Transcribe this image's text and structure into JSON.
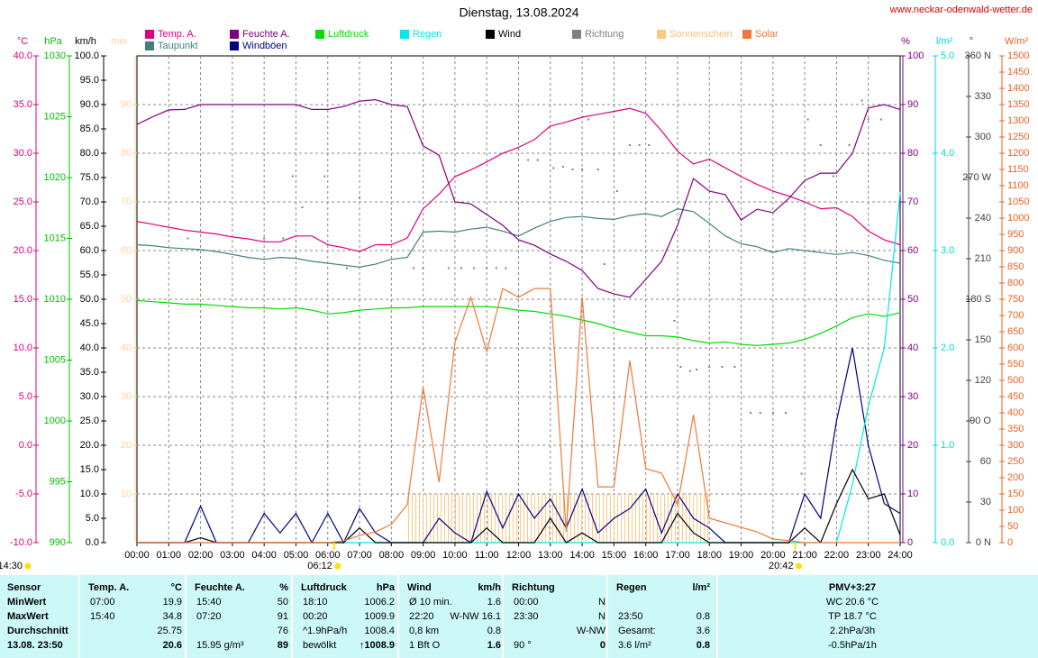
{
  "chart_data": {
    "type": "line",
    "title": "Dienstag, 13.08.2024",
    "source": "www.neckar-odenwald-wetter.de",
    "xlim": [
      0,
      24
    ],
    "xticks": [
      {
        "value": 0,
        "label": "00:00"
      },
      {
        "value": 1,
        "label": "01:00"
      },
      {
        "value": 2,
        "label": "02:00"
      },
      {
        "value": 3,
        "label": "03:00"
      },
      {
        "value": 4,
        "label": "04:00"
      },
      {
        "value": 5,
        "label": "05:00"
      },
      {
        "value": 6,
        "label": "06:00"
      },
      {
        "value": 7,
        "label": "07:00"
      },
      {
        "value": 8,
        "label": "08:00"
      },
      {
        "value": 9,
        "label": "09:00"
      },
      {
        "value": 10,
        "label": "10:00"
      },
      {
        "value": 11,
        "label": "11:00"
      },
      {
        "value": 12,
        "label": "12:00"
      },
      {
        "value": 13,
        "label": "13:00"
      },
      {
        "value": 14,
        "label": "14:00"
      },
      {
        "value": 15,
        "label": "15:00"
      },
      {
        "value": 16,
        "label": "16:00"
      },
      {
        "value": 17,
        "label": "17:00"
      },
      {
        "value": 18,
        "label": "18:00"
      },
      {
        "value": 19,
        "label": "19:00"
      },
      {
        "value": 20,
        "label": "20:00"
      },
      {
        "value": 21,
        "label": "21:00"
      },
      {
        "value": 22,
        "label": "22:00"
      },
      {
        "value": 23,
        "label": "23:00"
      },
      {
        "value": 24,
        "label": "24:00"
      }
    ],
    "axes": [
      {
        "label": "°C",
        "color": "#e0007f",
        "lim": [
          -10,
          40
        ],
        "ticks": [
          {
            "value": -10,
            "label": "-10.0"
          },
          {
            "value": -5,
            "label": "-5.0"
          },
          {
            "value": 0,
            "label": "0.0"
          },
          {
            "value": 5,
            "label": "5.0"
          },
          {
            "value": 10,
            "label": "10.0"
          },
          {
            "value": 15,
            "label": "15.0"
          },
          {
            "value": 20,
            "label": "20.0"
          },
          {
            "value": 25,
            "label": "25.0"
          },
          {
            "value": 30,
            "label": "30.0"
          },
          {
            "value": 35,
            "label": "35.0"
          },
          {
            "value": 40,
            "label": "40.0"
          }
        ]
      },
      {
        "label": "hPa",
        "color": "#00c000",
        "lim": [
          990,
          1030
        ],
        "ticks": [
          990,
          995,
          1000,
          1005,
          1010,
          1015,
          1020,
          1025,
          1030
        ]
      },
      {
        "label": "km/h",
        "color": "#000000",
        "lim": [
          0,
          100
        ],
        "ticks": [
          {
            "value": 0,
            "label": "0.0"
          },
          {
            "value": 5,
            "label": "5.0"
          },
          {
            "value": 10,
            "label": "10.0"
          },
          {
            "value": 15,
            "label": "15.0"
          },
          {
            "value": 20,
            "label": "20.0"
          },
          {
            "value": 25,
            "label": "25.0"
          },
          {
            "value": 30,
            "label": "30.0"
          },
          {
            "value": 35,
            "label": "35.0"
          },
          {
            "value": 40,
            "label": "40.0"
          },
          {
            "value": 45,
            "label": "45.0"
          },
          {
            "value": 50,
            "label": "50.0"
          },
          {
            "value": 55,
            "label": "55.0"
          },
          {
            "value": 60,
            "label": "60.0"
          },
          {
            "value": 65,
            "label": "65.0"
          },
          {
            "value": 70,
            "label": "70.0"
          },
          {
            "value": 75,
            "label": "75.0"
          },
          {
            "value": 80,
            "label": "80.0"
          },
          {
            "value": 85,
            "label": "85.0"
          },
          {
            "value": 90,
            "label": "90.0"
          },
          {
            "value": 95,
            "label": "95.0"
          },
          {
            "value": 100,
            "label": "100.0"
          }
        ]
      },
      {
        "label": "min",
        "color": "#ffd2a0",
        "lim": [
          0,
          100
        ],
        "ticks": [
          10,
          20,
          30,
          40,
          50,
          60,
          70,
          80,
          90
        ]
      },
      {
        "label": "%",
        "color": "#800080",
        "lim": [
          0,
          100
        ],
        "ticks": [
          0,
          10,
          20,
          30,
          40,
          50,
          60,
          70,
          80,
          90,
          100
        ],
        "grid": true
      },
      {
        "label": "l/m²",
        "color": "#00d8d8",
        "lim": [
          0,
          5
        ],
        "ticks": [
          {
            "value": 0,
            "label": "0.0"
          },
          {
            "value": 1,
            "label": "1.0"
          },
          {
            "value": 2,
            "label": "2.0"
          },
          {
            "value": 3,
            "label": "3.0"
          },
          {
            "value": 4,
            "label": "4.0"
          },
          {
            "value": 5,
            "label": "5.0"
          }
        ]
      },
      {
        "label": "°",
        "color": "#404040",
        "lim": [
          0,
          360
        ],
        "ticks": [
          {
            "value": 0,
            "label": "0 N"
          },
          30,
          60,
          {
            "value": 90,
            "label": "90 O"
          },
          120,
          150,
          {
            "value": 180,
            "label": "180 S"
          },
          210,
          240,
          {
            "value": 270,
            "label": "270 W"
          },
          300,
          330,
          {
            "value": 360,
            "label": "360 N"
          }
        ]
      },
      {
        "label": "W/m²",
        "color": "#f06020",
        "lim": [
          0,
          1500
        ],
        "ticks": [
          0,
          50,
          100,
          150,
          200,
          250,
          300,
          350,
          400,
          450,
          500,
          550,
          600,
          650,
          700,
          750,
          800,
          850,
          900,
          950,
          1000,
          1050,
          1100,
          1150,
          1200,
          1250,
          1300,
          1350,
          1400,
          1450,
          1500
        ]
      }
    ],
    "x": [
      0,
      0.5,
      1,
      1.5,
      2,
      2.5,
      3,
      3.5,
      4,
      4.5,
      5,
      5.5,
      6,
      6.5,
      7,
      7.5,
      8,
      8.5,
      9,
      9.5,
      10,
      10.5,
      11,
      11.5,
      12,
      12.5,
      13,
      13.5,
      14,
      14.5,
      15,
      15.5,
      16,
      16.5,
      17,
      17.5,
      18,
      18.5,
      19,
      19.5,
      20,
      20.5,
      21,
      21.5,
      22,
      22.5,
      23,
      23.5,
      24
    ],
    "series": [
      {
        "name": "Temp. A.",
        "color": "#e0007f",
        "axis": "°C",
        "type": "line",
        "values": [
          23.0,
          22.7,
          22.4,
          22.1,
          21.9,
          21.7,
          21.4,
          21.2,
          20.9,
          20.9,
          21.5,
          21.5,
          20.6,
          20.3,
          19.9,
          20.6,
          20.6,
          21.3,
          24.3,
          25.8,
          27.6,
          28.3,
          29.1,
          30.0,
          30.6,
          31.4,
          32.8,
          33.2,
          33.7,
          34.0,
          34.3,
          34.6,
          34.1,
          32.3,
          30.2,
          28.9,
          29.4,
          28.5,
          27.6,
          26.8,
          26.1,
          25.6,
          25.0,
          24.3,
          24.4,
          23.5,
          22.0,
          21.1,
          20.6
        ]
      },
      {
        "name": "Taupunkt",
        "color": "#408080",
        "axis": "°C",
        "type": "line",
        "values": [
          20.6,
          20.5,
          20.3,
          20.2,
          20.1,
          19.9,
          19.6,
          19.3,
          19.1,
          19.3,
          19.2,
          18.9,
          18.7,
          18.5,
          18.3,
          18.6,
          19.1,
          19.3,
          21.9,
          22.0,
          21.9,
          22.2,
          22.4,
          22.0,
          21.5,
          22.3,
          23.0,
          23.4,
          23.5,
          23.3,
          23.2,
          23.6,
          23.8,
          23.5,
          24.3,
          24.0,
          22.8,
          21.5,
          20.7,
          20.4,
          19.8,
          20.2,
          20.0,
          19.8,
          19.6,
          19.8,
          19.5,
          19.0,
          18.7
        ]
      },
      {
        "name": "Feuchte A.",
        "color": "#800080",
        "axis": "%",
        "type": "line",
        "values": [
          85.9,
          87.5,
          88.9,
          89,
          90,
          90,
          90,
          90,
          90,
          90,
          90,
          89,
          89,
          89.6,
          90.7,
          91,
          90,
          89.6,
          81.5,
          79.6,
          70,
          69.6,
          67.4,
          65.2,
          62.2,
          61.1,
          59.3,
          57.8,
          55.9,
          52.2,
          51.1,
          50.4,
          54.1,
          57.8,
          65.2,
          74.8,
          72.2,
          71.5,
          66.3,
          68.5,
          67.8,
          70.7,
          74.4,
          75.9,
          75.9,
          80,
          89.3,
          90,
          89
        ]
      },
      {
        "name": "Windböen",
        "color": "#000080",
        "axis": "km/h",
        "type": "line",
        "values": [
          0,
          0,
          0,
          0,
          7.5,
          0,
          0,
          0,
          6,
          2,
          6,
          0,
          6,
          0,
          7,
          2,
          0,
          0,
          0,
          5,
          2,
          0,
          10.5,
          3,
          10,
          5,
          9,
          3,
          11,
          2,
          5,
          7,
          11,
          2,
          10,
          5,
          3,
          0,
          0,
          0,
          0,
          0,
          10,
          5,
          25,
          40,
          20,
          8,
          6
        ]
      },
      {
        "name": "Luftdruck",
        "color": "#00dd00",
        "axis": "hPa",
        "type": "line",
        "values": [
          1009.9,
          1009.8,
          1009.7,
          1009.6,
          1009.6,
          1009.5,
          1009.4,
          1009.3,
          1009.3,
          1009.2,
          1009.3,
          1009.1,
          1008.8,
          1008.9,
          1009.1,
          1009.2,
          1009.3,
          1009.3,
          1009.4,
          1009.4,
          1009.4,
          1009.4,
          1009.4,
          1009.3,
          1009.1,
          1009.0,
          1008.8,
          1008.6,
          1008.3,
          1008.0,
          1007.6,
          1007.3,
          1007.0,
          1007.0,
          1006.9,
          1006.6,
          1006.4,
          1006.5,
          1006.3,
          1006.2,
          1006.3,
          1006.4,
          1006.7,
          1007.2,
          1007.8,
          1008.5,
          1008.8,
          1008.6,
          1008.9
        ]
      },
      {
        "name": "Regen",
        "color": "#00e8e8",
        "axis": "l/m²",
        "type": "line",
        "values": [
          0,
          0,
          0,
          0,
          0,
          0,
          0,
          0,
          0,
          0,
          0,
          0,
          0,
          0,
          0,
          0,
          0,
          0,
          0,
          0,
          0,
          0,
          0,
          0,
          0,
          0,
          0,
          0,
          0,
          0,
          0,
          0,
          0,
          0,
          0,
          0,
          0,
          0,
          0,
          0,
          0,
          0,
          0,
          0,
          0,
          0.6,
          1.4,
          2.0,
          3.6
        ]
      },
      {
        "name": "Wind",
        "color": "#000000",
        "axis": "km/h",
        "type": "line",
        "values": [
          0,
          0,
          0,
          0,
          1,
          0,
          0,
          0,
          0,
          0,
          0,
          0,
          0,
          0,
          3,
          0,
          0,
          0,
          0,
          0,
          0,
          0,
          3,
          0,
          0,
          0,
          5,
          0,
          2,
          0,
          0,
          0,
          0,
          0,
          6,
          2,
          0,
          0,
          0,
          0,
          0,
          0,
          3,
          0,
          8,
          15,
          9,
          10,
          1.6
        ]
      },
      {
        "name": "Richtung",
        "color": "#808080",
        "axis": "°",
        "type": "scatter",
        "x": [
          1.6,
          4.0,
          4.6,
          4.9,
          5.2,
          5.9,
          6.6,
          7.0,
          8.7,
          9.0,
          9.8,
          10.2,
          10.6,
          11.0,
          11.3,
          11.6,
          12.3,
          12.6,
          13.1,
          13.4,
          13.7,
          14.0,
          14.2,
          14.5,
          14.7,
          15.1,
          15.5,
          15.8,
          16.1,
          16.9,
          17.1,
          17.4,
          17.6,
          18.0,
          18.4,
          18.8,
          19.3,
          19.6,
          20.0,
          20.4,
          20.9,
          21.1,
          21.5,
          21.9,
          22.4,
          22.8,
          23.0,
          23.4,
          24.0
        ],
        "values": [
          225,
          225,
          225,
          271,
          248,
          271,
          203,
          255,
          203,
          203,
          203,
          203,
          203,
          203,
          203,
          203,
          283,
          283,
          277,
          278,
          276,
          276,
          313,
          276,
          206,
          260,
          294,
          294,
          294,
          164,
          130,
          127,
          128,
          130,
          130,
          130,
          96,
          96,
          96,
          96,
          51,
          313,
          294,
          271,
          294,
          327,
          313,
          313,
          90
        ]
      },
      {
        "name": "Sonnenschein",
        "color": "#ffc880",
        "axis": "min",
        "type": "bar",
        "x": [
          8.5,
          9,
          9.5,
          10,
          10.5,
          11,
          11.5,
          12,
          12.5,
          13,
          13.5,
          14,
          14.5,
          15,
          15.5,
          16,
          16.5,
          17,
          17.5
        ],
        "values": [
          10,
          10,
          10,
          10,
          10,
          10,
          10,
          10,
          10,
          10,
          10,
          10,
          10,
          10,
          10,
          10,
          10,
          10,
          10
        ]
      },
      {
        "name": "Solar",
        "color": "#f07838",
        "axis": "W/m²",
        "type": "line",
        "values": [
          0,
          0,
          0,
          0,
          0,
          0,
          0,
          0,
          0,
          0,
          0,
          0,
          0,
          5,
          22,
          33,
          56,
          117,
          478,
          186,
          617,
          756,
          589,
          783,
          756,
          783,
          783,
          33,
          756,
          172,
          172,
          561,
          228,
          214,
          117,
          394,
          75,
          61,
          47,
          33,
          11,
          6,
          0,
          0,
          0,
          0,
          0,
          0,
          0
        ]
      }
    ],
    "annotations": [
      {
        "text": "06:12",
        "x": 6.2
      },
      {
        "text": "20:42",
        "x": 20.7
      },
      {
        "text": "14:30"
      }
    ]
  },
  "table": {
    "labels": [
      "Sensor",
      "MinWert",
      "MaxWert",
      "Durchschnitt",
      "13.08. 23:50"
    ],
    "sections": [
      {
        "header": "Temp. A.",
        "unit": "°C",
        "left": [
          "07:00",
          "15:40",
          null,
          null
        ],
        "right": [
          "19.9",
          "34.8",
          "25.75",
          "20.6"
        ]
      },
      {
        "header": "Feuchte A.",
        "unit": "%",
        "left": [
          "15:40",
          "07:20",
          null,
          "15.95 g/m³"
        ],
        "right": [
          "50",
          "91",
          "76",
          "89"
        ]
      },
      {
        "header": "Luftdruck",
        "unit": "hPa",
        "left": [
          "18:10",
          "00:20",
          "^1.9hPa/h",
          "bewölkt"
        ],
        "right": [
          "1006.2",
          "1009.9",
          "1008.4",
          "↑1008.9"
        ]
      },
      {
        "header": "Wind",
        "unit": "km/h",
        "left": [
          "Ø 10 min.",
          "22:20",
          "0,8 km",
          "1 Bft O"
        ],
        "right": [
          "1.6",
          "W-NW 16.1",
          "0.8",
          "1.6"
        ]
      },
      {
        "header": "Richtung",
        "unit": null,
        "left": [
          "00:00",
          "23:30",
          null,
          "90 °"
        ],
        "right": [
          "N",
          "N",
          "W-NW",
          "0"
        ]
      },
      {
        "header": "Regen",
        "unit": "l/m²",
        "left": [
          null,
          "23:50",
          "Gesamt:",
          "3.6 l/m²"
        ],
        "right": [
          null,
          "0.8",
          "3.6",
          "0.8"
        ]
      }
    ],
    "pmv": [
      "PMV+3:27",
      "WC 20.6 °C",
      "TP 18.7 °C",
      "2.2hPa/3h",
      "-0.5hPa/1h"
    ]
  }
}
